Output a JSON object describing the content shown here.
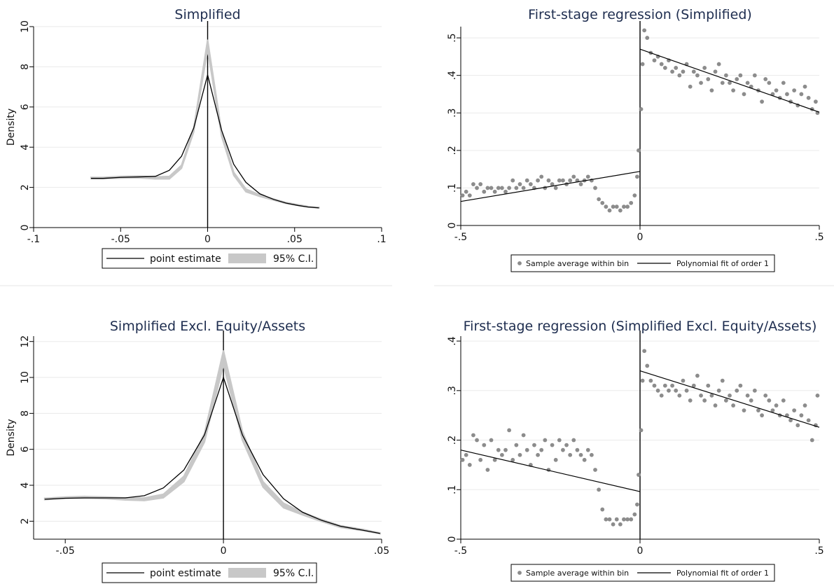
{
  "chart_data": [
    {
      "type": "line",
      "title": "Simplified",
      "ylabel": "Density",
      "xlim": [
        -0.1,
        0.1
      ],
      "ylim": [
        0,
        10
      ],
      "xticks": [
        -0.1,
        -0.05,
        0,
        0.05,
        0.1
      ],
      "xtick_labels": [
        "-.1",
        "-.05",
        "0",
        ".05",
        ".1"
      ],
      "yticks": [
        0,
        2,
        4,
        6,
        8,
        10
      ],
      "ytick_labels": [
        "0",
        "2",
        "4",
        "6",
        "8",
        "10"
      ],
      "grid": true,
      "cutoff_x": 0,
      "legend": {
        "position": "bottom",
        "items": [
          "point estimate",
          "95% C.I."
        ]
      },
      "ci_band": {
        "x": [
          -0.067,
          -0.06,
          -0.05,
          -0.04,
          -0.03,
          -0.022,
          -0.015,
          -0.008,
          0,
          0.008,
          0.015,
          0.022,
          0.03,
          0.038,
          0.045,
          0.052,
          0.058,
          0.064
        ],
        "lower": [
          2.43,
          2.43,
          2.46,
          2.48,
          2.42,
          2.42,
          2.95,
          4.75,
          8.85,
          4.55,
          2.6,
          1.78,
          1.55,
          1.36,
          1.2,
          1.1,
          1.02,
          0.98
        ],
        "upper": [
          2.5,
          2.5,
          2.55,
          2.57,
          2.52,
          2.55,
          3.1,
          4.95,
          9.35,
          4.8,
          2.75,
          1.92,
          1.63,
          1.42,
          1.25,
          1.14,
          1.05,
          1.01
        ]
      },
      "series": [
        {
          "name": "point estimate",
          "x": [
            -0.067,
            -0.06,
            -0.05,
            -0.04,
            -0.03,
            -0.022,
            -0.015,
            -0.008,
            0,
            0.008,
            0.015,
            0.022,
            0.03,
            0.038,
            0.045,
            0.052,
            0.058,
            0.064
          ],
          "values": [
            2.45,
            2.45,
            2.5,
            2.52,
            2.55,
            2.85,
            3.55,
            4.95,
            7.6,
            4.85,
            3.15,
            2.25,
            1.68,
            1.4,
            1.22,
            1.1,
            1.02,
            0.98
          ]
        }
      ]
    },
    {
      "type": "scatter",
      "title": "First-stage regression (Simplified)",
      "xlim": [
        -0.5,
        0.5
      ],
      "ylim": [
        0,
        0.53
      ],
      "xticks": [
        -0.5,
        0,
        0.5
      ],
      "xtick_labels": [
        "-.5",
        "0",
        ".5"
      ],
      "yticks": [
        0,
        0.1,
        0.2,
        0.3,
        0.4,
        0.5
      ],
      "ytick_labels": [
        "0",
        ".1",
        ".2",
        ".3",
        ".4",
        ".5"
      ],
      "grid": true,
      "cutoff_x": 0,
      "legend": {
        "position": "bottom",
        "items": [
          "Sample average within bin",
          "Polynomial fit of order 1"
        ]
      },
      "series": [
        {
          "name": "Sample average within bin",
          "x": [
            -0.495,
            -0.485,
            -0.475,
            -0.465,
            -0.455,
            -0.445,
            -0.435,
            -0.425,
            -0.415,
            -0.405,
            -0.395,
            -0.385,
            -0.375,
            -0.365,
            -0.355,
            -0.345,
            -0.335,
            -0.325,
            -0.315,
            -0.305,
            -0.295,
            -0.285,
            -0.275,
            -0.265,
            -0.255,
            -0.245,
            -0.235,
            -0.225,
            -0.215,
            -0.205,
            -0.195,
            -0.185,
            -0.175,
            -0.165,
            -0.155,
            -0.145,
            -0.135,
            -0.125,
            -0.115,
            -0.105,
            -0.095,
            -0.085,
            -0.075,
            -0.065,
            -0.055,
            -0.045,
            -0.035,
            -0.025,
            -0.015,
            -0.008,
            -0.004,
            0.003,
            0.007,
            0.012,
            0.02,
            0.03,
            0.04,
            0.05,
            0.06,
            0.07,
            0.08,
            0.09,
            0.1,
            0.11,
            0.12,
            0.13,
            0.14,
            0.15,
            0.16,
            0.17,
            0.18,
            0.19,
            0.2,
            0.21,
            0.22,
            0.23,
            0.24,
            0.25,
            0.26,
            0.27,
            0.28,
            0.29,
            0.3,
            0.31,
            0.32,
            0.33,
            0.34,
            0.35,
            0.36,
            0.37,
            0.38,
            0.39,
            0.4,
            0.41,
            0.42,
            0.43,
            0.44,
            0.45,
            0.46,
            0.47,
            0.48,
            0.49,
            0.495
          ],
          "values": [
            0.08,
            0.09,
            0.08,
            0.11,
            0.1,
            0.11,
            0.09,
            0.1,
            0.1,
            0.09,
            0.1,
            0.1,
            0.09,
            0.1,
            0.12,
            0.1,
            0.11,
            0.1,
            0.12,
            0.11,
            0.1,
            0.12,
            0.13,
            0.1,
            0.12,
            0.11,
            0.1,
            0.12,
            0.12,
            0.11,
            0.12,
            0.13,
            0.12,
            0.11,
            0.12,
            0.13,
            0.12,
            0.1,
            0.07,
            0.06,
            0.05,
            0.04,
            0.05,
            0.05,
            0.04,
            0.05,
            0.05,
            0.06,
            0.08,
            0.13,
            0.2,
            0.31,
            0.43,
            0.52,
            0.5,
            0.46,
            0.44,
            0.45,
            0.43,
            0.42,
            0.44,
            0.41,
            0.42,
            0.4,
            0.41,
            0.43,
            0.37,
            0.41,
            0.4,
            0.38,
            0.42,
            0.39,
            0.36,
            0.41,
            0.43,
            0.38,
            0.4,
            0.38,
            0.36,
            0.39,
            0.4,
            0.35,
            0.38,
            0.37,
            0.4,
            0.36,
            0.33,
            0.39,
            0.38,
            0.35,
            0.36,
            0.34,
            0.38,
            0.35,
            0.33,
            0.36,
            0.32,
            0.35,
            0.37,
            0.34,
            0.31,
            0.33,
            0.3
          ]
        },
        {
          "name": "Polynomial fit of order 1",
          "segments": [
            {
              "x": [
                -0.5,
                0
              ],
              "values": [
                0.064,
                0.144
              ]
            },
            {
              "x": [
                0,
                0.5
              ],
              "values": [
                0.47,
                0.302
              ]
            }
          ]
        }
      ]
    },
    {
      "type": "line",
      "title": "Simplified Excl. Equity/Assets",
      "ylabel": "Density",
      "xlim": [
        -0.06,
        0.05
      ],
      "ylim": [
        1,
        12.3
      ],
      "xticks": [
        -0.05,
        0,
        0.05
      ],
      "xtick_labels": [
        "-.05",
        "0",
        ".05"
      ],
      "yticks": [
        2,
        4,
        6,
        8,
        10,
        12
      ],
      "ytick_labels": [
        "2",
        "4",
        "6",
        "8",
        "10",
        "12"
      ],
      "grid": true,
      "cutoff_x": 0,
      "legend": {
        "position": "bottom",
        "items": [
          "point estimate",
          "95% C.I."
        ]
      },
      "ci_band": {
        "x": [
          -0.0565,
          -0.05,
          -0.044,
          -0.037,
          -0.031,
          -0.025,
          -0.019,
          -0.0125,
          -0.006,
          0,
          0.006,
          0.0125,
          0.019,
          0.025,
          0.031,
          0.037,
          0.044,
          0.0495
        ],
        "lower": [
          3.2,
          3.27,
          3.28,
          3.25,
          3.18,
          3.15,
          3.3,
          4.2,
          6.4,
          10.7,
          6.5,
          3.9,
          2.75,
          2.35,
          1.98,
          1.65,
          1.48,
          1.3
        ],
        "upper": [
          3.28,
          3.35,
          3.38,
          3.35,
          3.3,
          3.3,
          3.5,
          4.5,
          6.9,
          11.5,
          7.0,
          4.2,
          3.0,
          2.5,
          2.1,
          1.75,
          1.55,
          1.35
        ]
      },
      "series": [
        {
          "name": "point estimate",
          "x": [
            -0.0565,
            -0.05,
            -0.044,
            -0.037,
            -0.031,
            -0.025,
            -0.019,
            -0.0125,
            -0.006,
            0,
            0.006,
            0.0125,
            0.019,
            0.025,
            0.031,
            0.037,
            0.044,
            0.0495
          ],
          "values": [
            3.22,
            3.28,
            3.3,
            3.3,
            3.3,
            3.42,
            3.85,
            4.85,
            6.8,
            10.0,
            6.8,
            4.6,
            3.25,
            2.5,
            2.05,
            1.72,
            1.5,
            1.32
          ]
        }
      ]
    },
    {
      "type": "scatter",
      "title": "First-stage regression (Simplified Excl. Equity/Assets)",
      "xlim": [
        -0.5,
        0.5
      ],
      "ylim": [
        0,
        0.41
      ],
      "xticks": [
        -0.5,
        0,
        0.5
      ],
      "xtick_labels": [
        "-.5",
        "0",
        ".5"
      ],
      "yticks": [
        0,
        0.1,
        0.2,
        0.3,
        0.4
      ],
      "ytick_labels": [
        "0",
        ".1",
        ".2",
        ".3",
        ".4"
      ],
      "grid": true,
      "cutoff_x": 0,
      "legend": {
        "position": "bottom",
        "items": [
          "Sample average within bin",
          "Polynomial fit of order 1"
        ]
      },
      "series": [
        {
          "name": "Sample average within bin",
          "x": [
            -0.495,
            -0.485,
            -0.475,
            -0.465,
            -0.455,
            -0.445,
            -0.435,
            -0.425,
            -0.415,
            -0.405,
            -0.395,
            -0.385,
            -0.375,
            -0.365,
            -0.355,
            -0.345,
            -0.335,
            -0.325,
            -0.315,
            -0.305,
            -0.295,
            -0.285,
            -0.275,
            -0.265,
            -0.255,
            -0.245,
            -0.235,
            -0.225,
            -0.215,
            -0.205,
            -0.195,
            -0.185,
            -0.175,
            -0.165,
            -0.155,
            -0.145,
            -0.135,
            -0.125,
            -0.115,
            -0.105,
            -0.095,
            -0.085,
            -0.075,
            -0.065,
            -0.055,
            -0.045,
            -0.035,
            -0.025,
            -0.015,
            -0.008,
            -0.004,
            0.003,
            0.007,
            0.012,
            0.02,
            0.03,
            0.04,
            0.05,
            0.06,
            0.07,
            0.08,
            0.09,
            0.1,
            0.11,
            0.12,
            0.13,
            0.14,
            0.15,
            0.16,
            0.17,
            0.18,
            0.19,
            0.2,
            0.21,
            0.22,
            0.23,
            0.24,
            0.25,
            0.26,
            0.27,
            0.28,
            0.29,
            0.3,
            0.31,
            0.32,
            0.33,
            0.34,
            0.35,
            0.36,
            0.37,
            0.38,
            0.39,
            0.4,
            0.41,
            0.42,
            0.43,
            0.44,
            0.45,
            0.46,
            0.47,
            0.48,
            0.49,
            0.495
          ],
          "values": [
            0.16,
            0.17,
            0.15,
            0.21,
            0.2,
            0.16,
            0.19,
            0.14,
            0.2,
            0.16,
            0.18,
            0.17,
            0.18,
            0.22,
            0.16,
            0.19,
            0.17,
            0.21,
            0.18,
            0.15,
            0.19,
            0.17,
            0.18,
            0.2,
            0.14,
            0.19,
            0.16,
            0.2,
            0.18,
            0.19,
            0.17,
            0.2,
            0.18,
            0.17,
            0.16,
            0.18,
            0.17,
            0.14,
            0.1,
            0.06,
            0.04,
            0.04,
            0.03,
            0.04,
            0.03,
            0.04,
            0.04,
            0.04,
            0.05,
            0.07,
            0.13,
            0.22,
            0.32,
            0.38,
            0.35,
            0.32,
            0.31,
            0.3,
            0.29,
            0.31,
            0.3,
            0.31,
            0.3,
            0.29,
            0.32,
            0.3,
            0.28,
            0.31,
            0.33,
            0.29,
            0.28,
            0.31,
            0.29,
            0.27,
            0.3,
            0.32,
            0.28,
            0.29,
            0.27,
            0.3,
            0.31,
            0.26,
            0.29,
            0.28,
            0.3,
            0.26,
            0.25,
            0.29,
            0.28,
            0.26,
            0.27,
            0.25,
            0.28,
            0.25,
            0.24,
            0.26,
            0.23,
            0.25,
            0.27,
            0.24,
            0.2,
            0.23,
            0.29
          ]
        },
        {
          "name": "Polynomial fit of order 1",
          "segments": [
            {
              "x": [
                -0.5,
                0
              ],
              "values": [
                0.18,
                0.096
              ]
            },
            {
              "x": [
                0,
                0.5
              ],
              "values": [
                0.34,
                0.226
              ]
            }
          ]
        }
      ]
    }
  ]
}
